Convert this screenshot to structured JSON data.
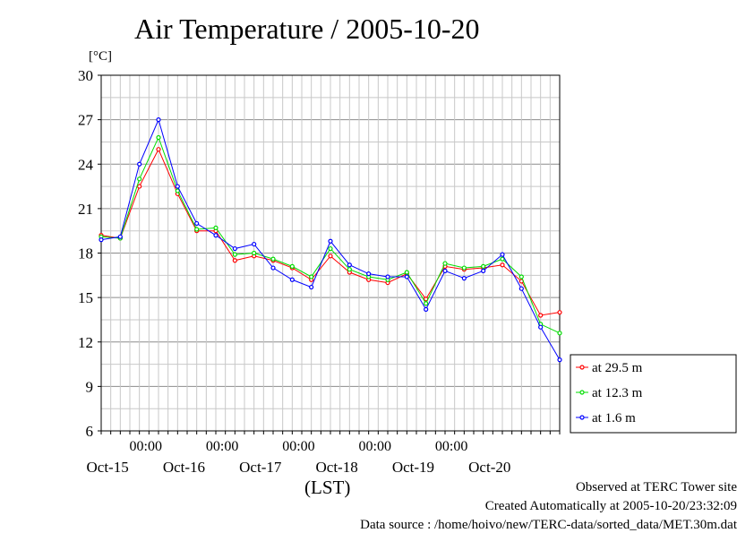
{
  "title": "Air Temperature / 2005-10-20",
  "y_unit": "[°C]",
  "x_axis_label": "(LST)",
  "footer": {
    "observed": "Observed at TERC Tower site",
    "created": "Created Automatically at 2005-10-20/23:32:09",
    "source": "Data source : /home/hoivo/new/TERC-data/sorted_data/MET.30m.dat"
  },
  "chart_data": {
    "type": "line",
    "ylim": [
      6,
      30
    ],
    "yticks": [
      6,
      9,
      12,
      15,
      18,
      21,
      24,
      27,
      30
    ],
    "xlim": [
      0,
      144
    ],
    "grid": true,
    "legend_position": "bottom-right",
    "time_ticks": [
      "00:00",
      "00:00",
      "00:00",
      "00:00",
      "00:00"
    ],
    "date_labels": [
      "Oct-15",
      "Oct-16",
      "Oct-17",
      "Oct-18",
      "Oct-19",
      "Oct-20"
    ],
    "x_hours": [
      0,
      6,
      12,
      18,
      24,
      30,
      36,
      42,
      48,
      54,
      60,
      66,
      72,
      78,
      84,
      90,
      96,
      102,
      108,
      114,
      120,
      126,
      132,
      138,
      144
    ],
    "series": [
      {
        "name": "at 29.5 m",
        "color": "#ff0000",
        "values": [
          19.2,
          19.0,
          22.5,
          25.0,
          22.0,
          19.5,
          19.5,
          17.5,
          17.8,
          17.5,
          17.0,
          16.2,
          17.8,
          16.7,
          16.2,
          16.0,
          16.6,
          14.9,
          17.1,
          16.9,
          17.0,
          17.2,
          16.1,
          13.8,
          14.0
        ]
      },
      {
        "name": "at 12.3 m",
        "color": "#00dd00",
        "values": [
          19.1,
          19.0,
          23.0,
          25.8,
          22.2,
          19.6,
          19.7,
          17.9,
          18.0,
          17.6,
          17.1,
          16.4,
          18.3,
          16.9,
          16.4,
          16.2,
          16.7,
          14.6,
          17.3,
          17.0,
          17.1,
          17.6,
          16.4,
          13.2,
          12.6
        ]
      },
      {
        "name": "at 1.6 m",
        "color": "#0000ff",
        "values": [
          18.9,
          19.1,
          24.0,
          27.0,
          22.5,
          20.0,
          19.2,
          18.3,
          18.6,
          17.0,
          16.2,
          15.7,
          18.8,
          17.2,
          16.6,
          16.4,
          16.4,
          14.2,
          16.8,
          16.3,
          16.8,
          17.9,
          15.6,
          13.0,
          10.8
        ]
      }
    ]
  }
}
